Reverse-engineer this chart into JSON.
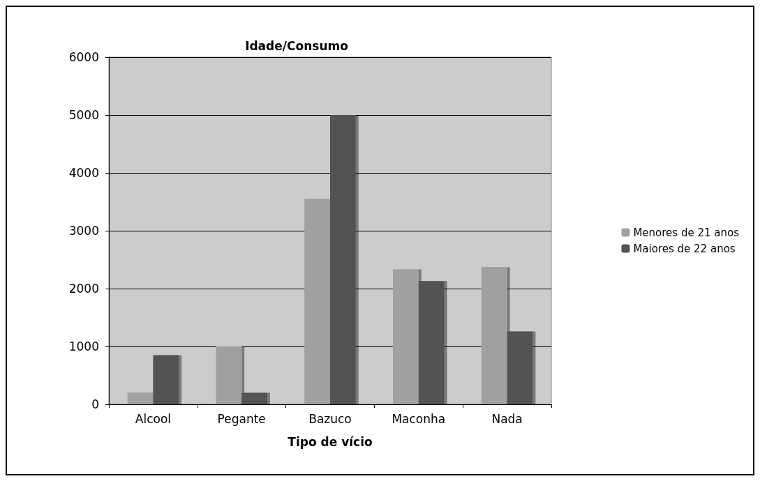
{
  "chart_data": {
    "type": "bar",
    "title": "Idade/Consumo",
    "xlabel": "Tipo de vício",
    "categories": [
      "Alcool",
      "Pegante",
      "Bazuco",
      "Maconha",
      "Nada"
    ],
    "series": [
      {
        "name": "Menores de 21 anos",
        "color": "#a0a0a0",
        "values": [
          200,
          1000,
          3550,
          2330,
          2370
        ]
      },
      {
        "name": "Maiores de 22 anos",
        "color": "#525252",
        "values": [
          850,
          200,
          5000,
          2130,
          1260
        ]
      }
    ],
    "ylim": [
      0,
      6000
    ],
    "yticks": [
      0,
      1000,
      2000,
      3000,
      4000,
      5000,
      6000
    ],
    "grid": "y",
    "legend": "right"
  }
}
